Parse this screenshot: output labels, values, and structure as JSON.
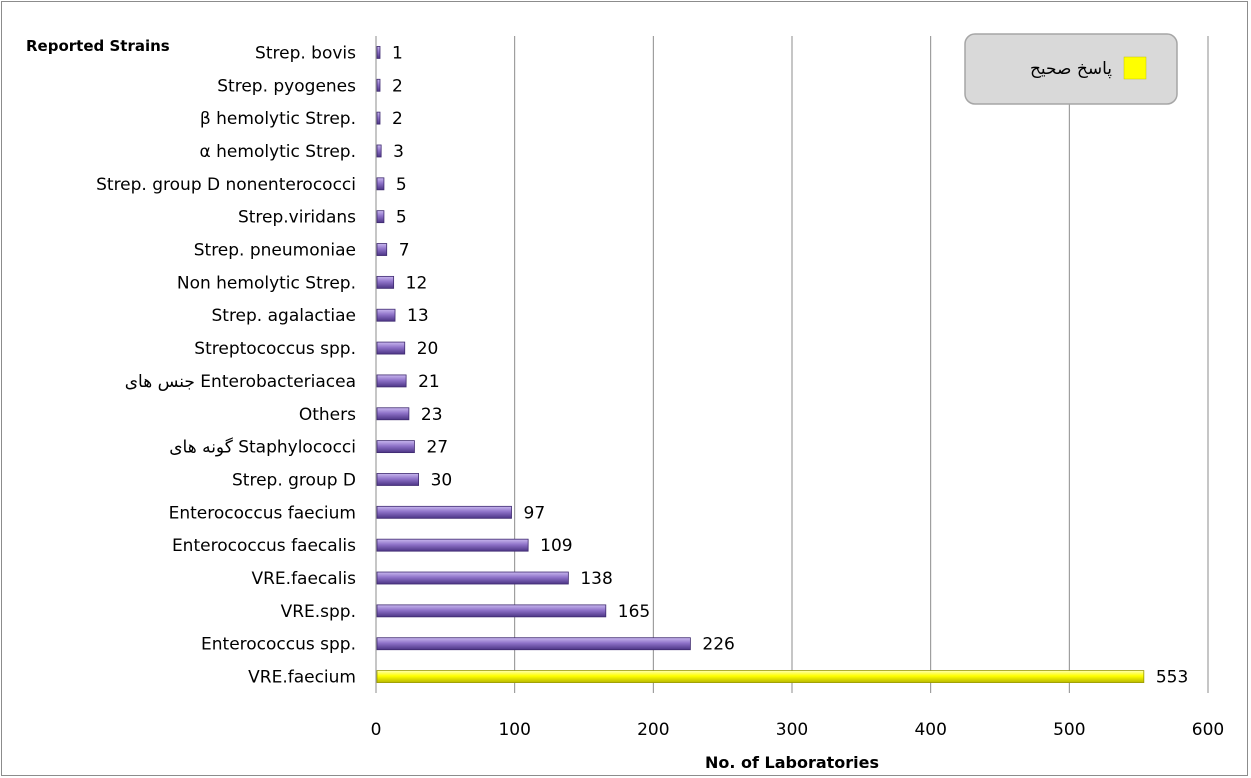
{
  "chart_data": {
    "type": "bar",
    "orientation": "horizontal",
    "ylabel": "Reported Strains",
    "xlabel": "No. of Laboratories",
    "xlim": [
      0,
      600
    ],
    "xticks": [
      0,
      100,
      200,
      300,
      400,
      500,
      600
    ],
    "grid": "vertical",
    "legend": {
      "position": "top-right",
      "entries": [
        {
          "label": "پاسخ صحیح",
          "color": "#ffff00"
        }
      ]
    },
    "bar_color_default": "#8e72c8",
    "highlight_color": "#ffff00",
    "categories": [
      "Strep. bovis",
      "Strep. pyogenes",
      "β hemolytic Strep.",
      "α hemolytic Strep.",
      "Strep. group D nonenterococci",
      "Strep.viridans",
      "Strep. pneumoniae",
      "Non hemolytic Strep.",
      "Strep. agalactiae",
      "Streptococcus spp.",
      "جنس های Enterobacteriacea",
      "Others",
      "گونه های Staphylococci",
      "Strep. group D",
      "Enterococcus faecium",
      "Enterococcus faecalis",
      "VRE.faecalis",
      "VRE.spp.",
      "Enterococcus spp.",
      "VRE.faecium"
    ],
    "values": [
      1,
      2,
      2,
      3,
      5,
      5,
      7,
      12,
      13,
      20,
      21,
      23,
      27,
      30,
      97,
      109,
      138,
      165,
      226,
      553
    ],
    "highlighted": [
      "VRE.faecium"
    ]
  }
}
